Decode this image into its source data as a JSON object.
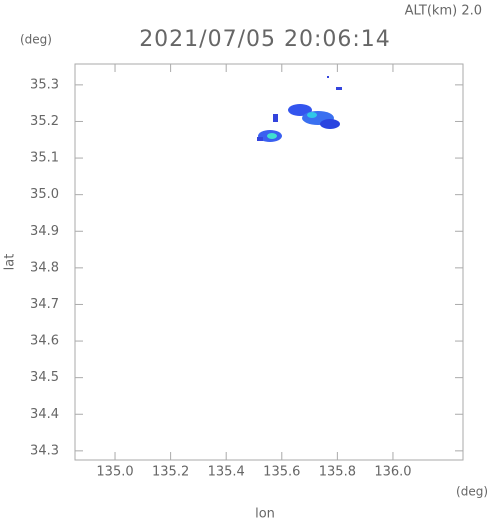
{
  "chart_data": {
    "type": "map",
    "title": "2021/07/05 20:06:14",
    "altitude_label": "ALT(km) 2.0",
    "y_unit": "(deg)",
    "x_unit": "(deg)",
    "ylabel": "lat",
    "xlabel": "lon",
    "xlim": [
      134.856,
      136.252
    ],
    "ylim": [
      34.275,
      35.357
    ],
    "xticks": [
      {
        "value": 135.0,
        "label": "135.0"
      },
      135.2,
      135.4,
      135.6,
      135.8,
      {
        "value": 136.0,
        "label": "136.0"
      }
    ],
    "yticks": [
      34.3,
      34.4,
      34.5,
      34.6,
      34.7,
      34.8,
      34.9,
      {
        "value": 35.0,
        "label": "35.0"
      },
      35.1,
      35.2,
      35.3
    ]
  }
}
